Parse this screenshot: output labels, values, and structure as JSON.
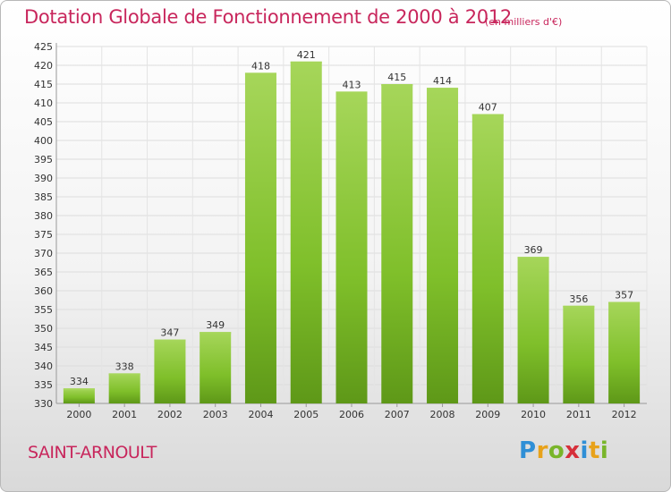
{
  "header": {
    "title": "Dotation Globale de Fonctionnement de 2000 à 2012",
    "unit_note": "(en milliers d'€)"
  },
  "footer": {
    "place": "SAINT-ARNOULT",
    "logo": {
      "letters": [
        "P",
        "r",
        "o",
        "x",
        "i",
        "t",
        "i"
      ],
      "colors": [
        "#2f8fd6",
        "#e8a21a",
        "#79b52a",
        "#d62f3a",
        "#2f8fd6",
        "#e8a21a",
        "#79b52a"
      ]
    }
  },
  "chart_data": {
    "type": "bar",
    "title": "Dotation Globale de Fonctionnement de 2000 à 2012",
    "subtitle": "(en milliers d'€)",
    "categories": [
      "2000",
      "2001",
      "2002",
      "2003",
      "2004",
      "2005",
      "2006",
      "2007",
      "2008",
      "2009",
      "2010",
      "2011",
      "2012"
    ],
    "values": [
      334,
      338,
      347,
      349,
      418,
      421,
      413,
      415,
      414,
      407,
      369,
      356,
      357
    ],
    "xlabel": "",
    "ylabel": "",
    "ylim": [
      330,
      425
    ],
    "yticks": [
      330,
      335,
      340,
      345,
      350,
      355,
      360,
      365,
      370,
      375,
      380,
      385,
      390,
      395,
      400,
      405,
      410,
      415,
      420,
      425
    ],
    "grid": true,
    "bar_color": "#7fbf2a",
    "bar_color_light": "#a6d65a",
    "bar_color_dark": "#5e9818"
  }
}
